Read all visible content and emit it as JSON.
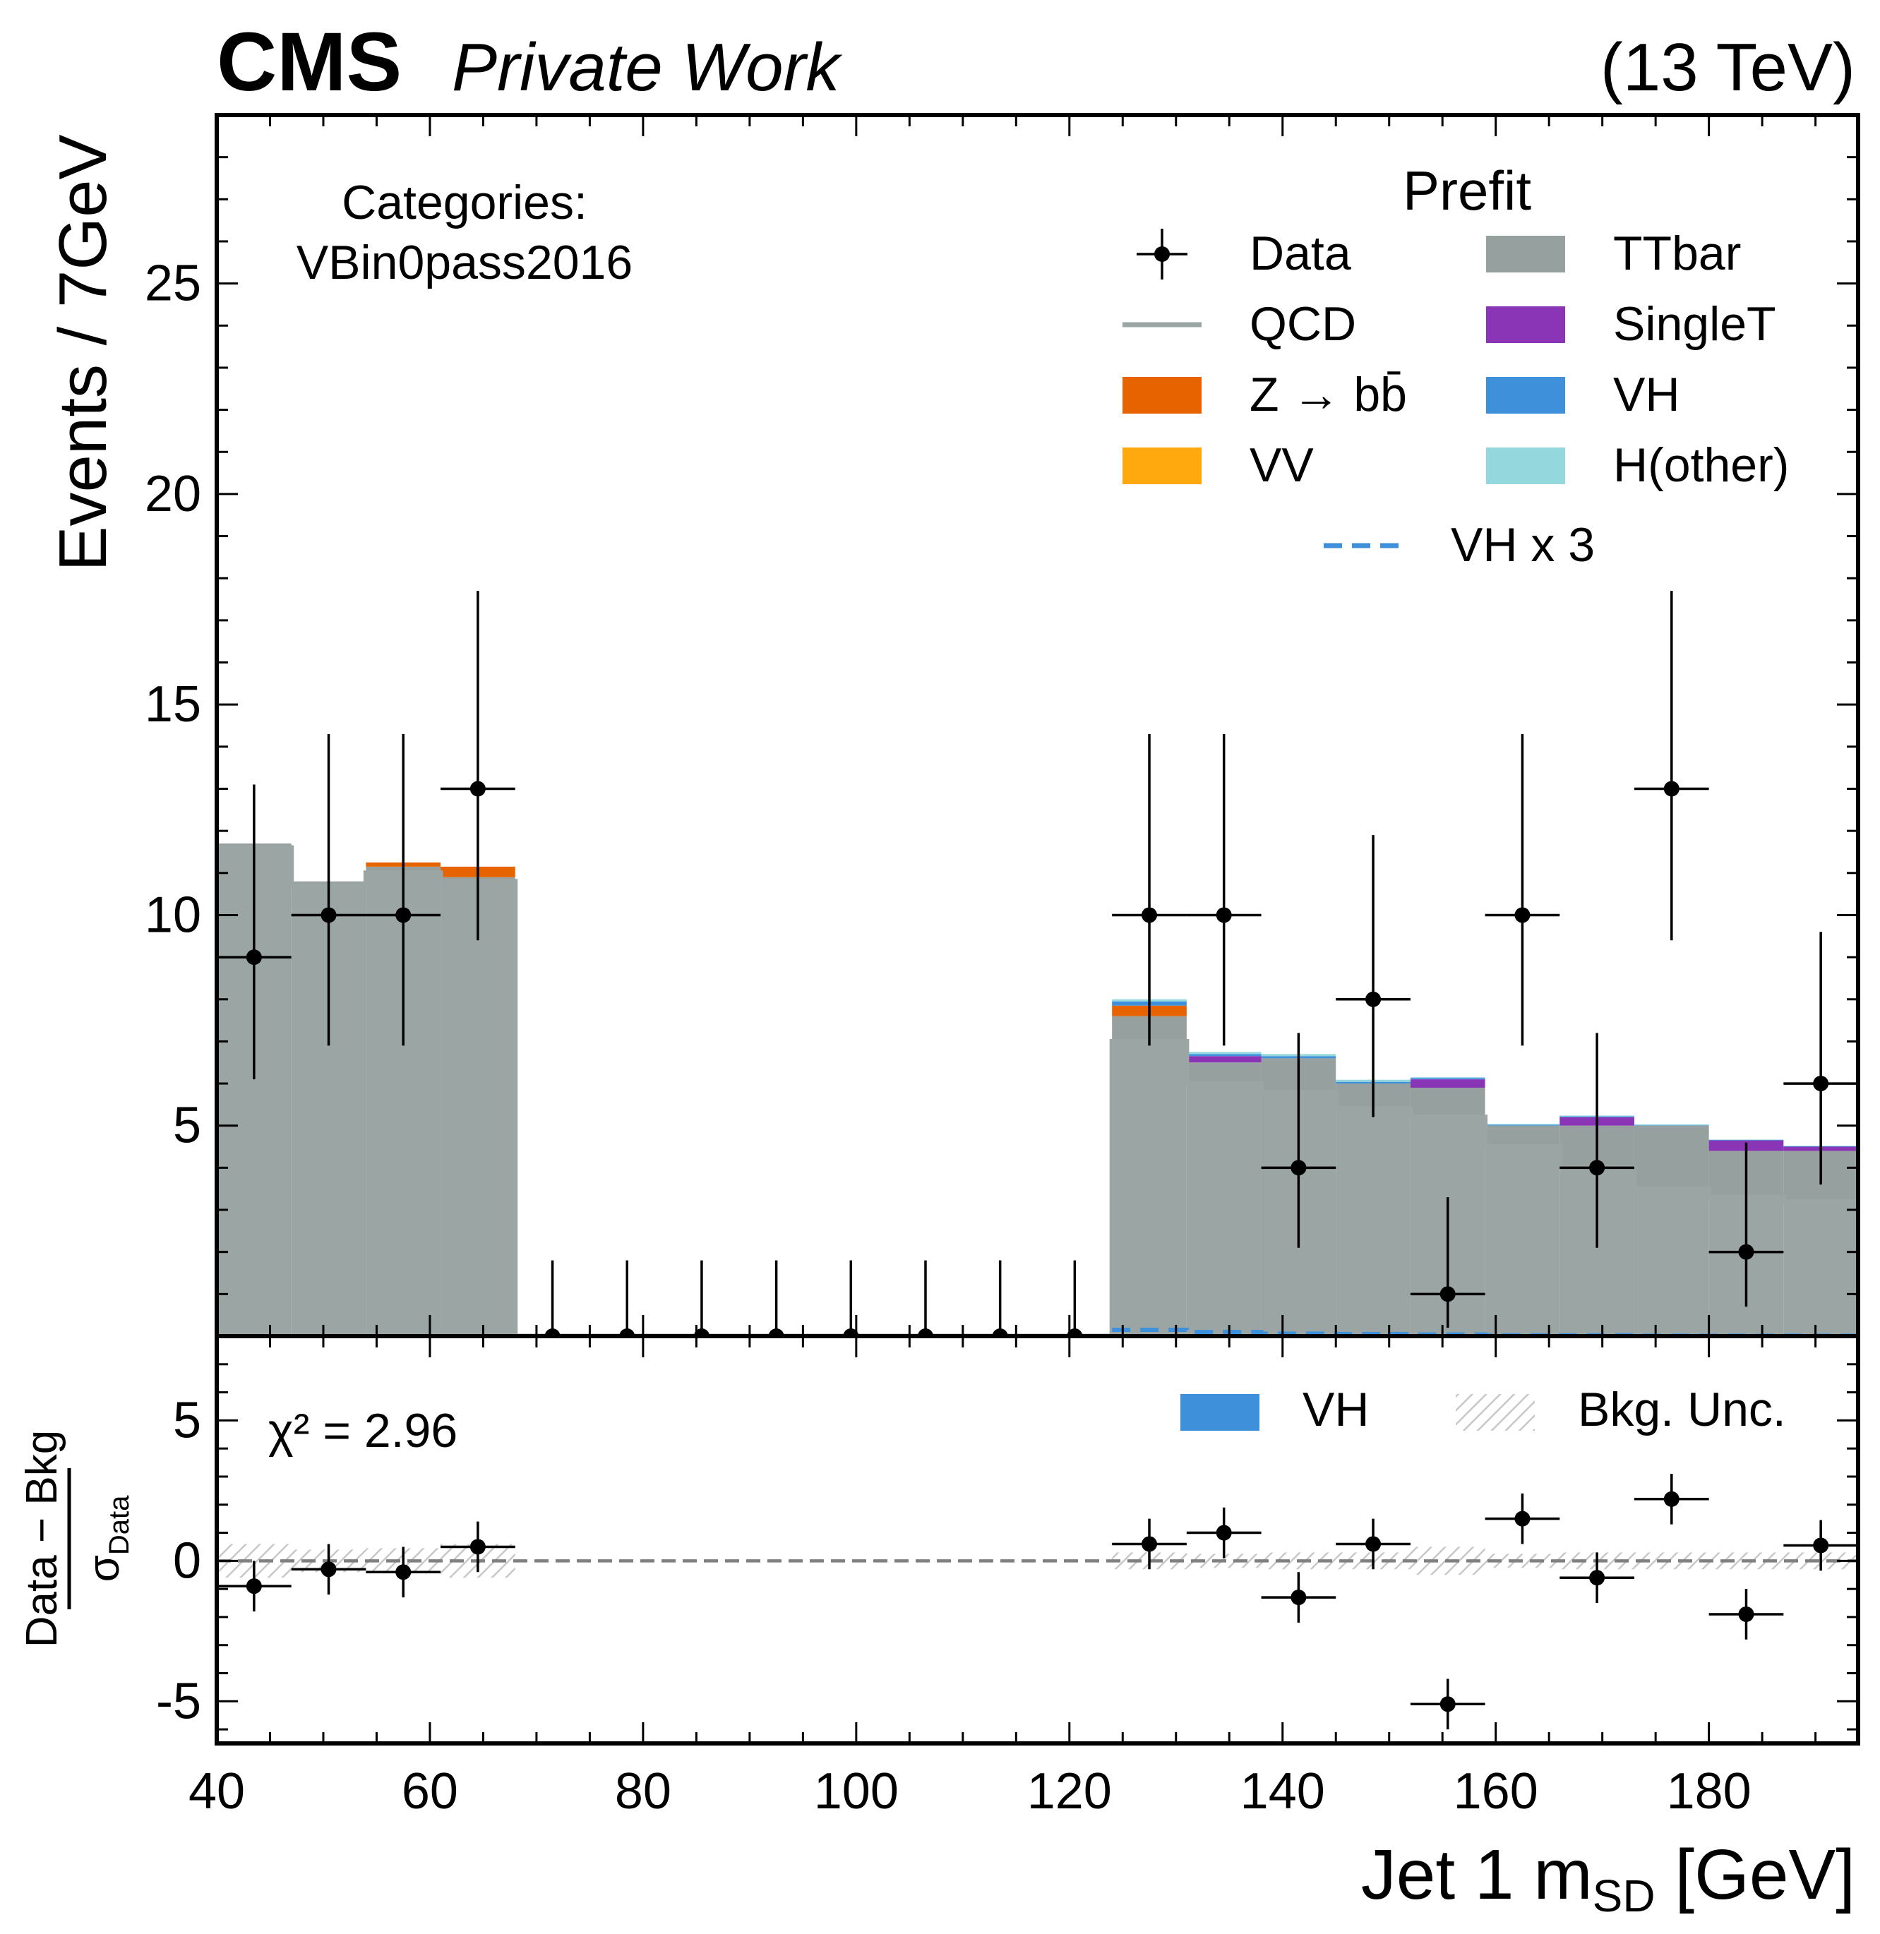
{
  "header": {
    "experiment": "CMS",
    "status": "Private Work",
    "energy": "(13 TeV)"
  },
  "annotation": {
    "line1": "Categories:",
    "line2": "VBin0pass2016"
  },
  "legend": {
    "title": "Prefit",
    "items": [
      {
        "label": "Data",
        "kind": "marker",
        "color": "#000000"
      },
      {
        "label": "TTbar",
        "kind": "fill",
        "color": "#96a09e"
      },
      {
        "label": "QCD",
        "kind": "line",
        "color": "#9ba6a4"
      },
      {
        "label": "SingleT",
        "kind": "fill",
        "color": "#8a35b5"
      },
      {
        "label": "Z → bb̄",
        "kind": "fill",
        "color": "#e76300"
      },
      {
        "label": "VH",
        "kind": "fill",
        "color": "#3f90da"
      },
      {
        "label": "VV",
        "kind": "fill",
        "color": "#ffa90e"
      },
      {
        "label": "H(other)",
        "kind": "fill",
        "color": "#94d8de"
      },
      {
        "label": "VH x 3",
        "kind": "dashed",
        "color": "#3f90da"
      }
    ]
  },
  "ratio_legend": {
    "vh_label": "VH",
    "unc_label": "Bkg. Unc.",
    "chi2_label": "χ² = 2.96"
  },
  "chart_data": [
    {
      "type": "bar",
      "panel": "main",
      "ylabel": "Events / 7GeV",
      "xlim": [
        40,
        194
      ],
      "ylim": [
        0,
        29
      ],
      "yticks": [
        5,
        10,
        15,
        20,
        25
      ],
      "x_bin_edges": [
        40,
        47,
        54,
        61,
        68,
        75,
        82,
        89,
        96,
        103,
        110,
        117,
        124,
        131,
        138,
        145,
        152,
        159,
        166,
        173,
        180,
        187,
        194
      ],
      "data": {
        "name": "Data",
        "x": [
          43.5,
          50.5,
          57.5,
          64.5,
          71.5,
          78.5,
          85.5,
          92.5,
          99.5,
          106.5,
          113.5,
          120.5,
          127.5,
          134.5,
          141.5,
          148.5,
          155.5,
          162.5,
          169.5,
          176.5,
          183.5,
          190.5
        ],
        "values": [
          9,
          10,
          10,
          13,
          0,
          0,
          0,
          0,
          0,
          0,
          0,
          0,
          10,
          10,
          4,
          8,
          1,
          10,
          4,
          13,
          2,
          6
        ],
        "err_up": [
          4.1,
          4.3,
          4.3,
          4.7,
          1.8,
          1.8,
          1.8,
          1.8,
          1.8,
          1.8,
          1.8,
          1.8,
          4.3,
          4.3,
          3.2,
          3.9,
          2.3,
          4.3,
          3.2,
          4.7,
          2.6,
          3.6
        ],
        "err_down": [
          2.9,
          3.1,
          3.1,
          3.6,
          0,
          0,
          0,
          0,
          0,
          0,
          0,
          0,
          3.1,
          3.1,
          1.9,
          2.8,
          0.8,
          3.1,
          1.9,
          3.6,
          1.3,
          2.4
        ]
      },
      "stack_order": [
        "QCD",
        "TTbar",
        "SingleT",
        "Z → bb̄",
        "VH",
        "VV",
        "H(other)"
      ],
      "series": [
        {
          "name": "QCD",
          "values": [
            11.6,
            10.7,
            11.0,
            10.8,
            0,
            0,
            0,
            0,
            0,
            0,
            0,
            0,
            7.0,
            6.0,
            5.8,
            5.4,
            5.2,
            4.5,
            4.0,
            3.5,
            3.3,
            3.2
          ]
        },
        {
          "name": "TTbar",
          "values": [
            0.1,
            0.1,
            0.15,
            0.1,
            0,
            0,
            0,
            0,
            0,
            0,
            0,
            0,
            0.6,
            0.5,
            0.8,
            0.6,
            0.7,
            0.5,
            1.0,
            1.5,
            1.1,
            1.2
          ]
        },
        {
          "name": "SingleT",
          "values": [
            0,
            0,
            0,
            0,
            0,
            0,
            0,
            0,
            0,
            0,
            0,
            0,
            0,
            0.15,
            0,
            0,
            0.2,
            0,
            0.2,
            0,
            0.25,
            0.1
          ]
        },
        {
          "name": "Z → bb̄",
          "values": [
            0,
            0,
            0.1,
            0.25,
            0,
            0,
            0,
            0,
            0,
            0,
            0,
            0,
            0.25,
            0,
            0,
            0,
            0,
            0,
            0,
            0,
            0,
            0
          ]
        },
        {
          "name": "VH",
          "values": [
            0,
            0,
            0,
            0,
            0,
            0,
            0,
            0,
            0,
            0,
            0,
            0,
            0.1,
            0.05,
            0.05,
            0.04,
            0.03,
            0.02,
            0.02,
            0.01,
            0.01,
            0.01
          ]
        },
        {
          "name": "VV",
          "values": [
            0,
            0,
            0,
            0,
            0,
            0,
            0,
            0,
            0,
            0,
            0,
            0,
            0,
            0,
            0,
            0,
            0,
            0,
            0,
            0,
            0,
            0
          ]
        },
        {
          "name": "H(other)",
          "values": [
            0,
            0,
            0,
            0,
            0,
            0,
            0,
            0,
            0,
            0,
            0,
            0,
            0.05,
            0.05,
            0.05,
            0.05,
            0.02,
            0.02,
            0.02,
            0.02,
            0.01,
            0.01
          ]
        }
      ],
      "vh_x3": [
        0,
        0,
        0,
        0,
        0,
        0,
        0,
        0,
        0,
        0,
        0,
        0,
        0.15,
        0.1,
        0.06,
        0.05,
        0.04,
        0.02,
        0.02,
        0.01,
        0.01,
        0.01
      ]
    },
    {
      "type": "scatter",
      "panel": "ratio",
      "ylabel": "Data - Bkg / σData",
      "xlabel": "Jet 1 mSD [GeV]",
      "xlim": [
        40,
        194
      ],
      "ylim": [
        -6.5,
        8
      ],
      "yticks": [
        -5,
        0,
        5
      ],
      "xticks": [
        40,
        60,
        80,
        100,
        120,
        140,
        160,
        180
      ],
      "x": [
        43.5,
        50.5,
        57.5,
        64.5,
        127.5,
        134.5,
        141.5,
        148.5,
        155.5,
        162.5,
        169.5,
        176.5,
        183.5,
        190.5
      ],
      "values": [
        -0.9,
        -0.3,
        -0.4,
        0.5,
        0.6,
        1.0,
        -1.3,
        0.6,
        -5.1,
        1.5,
        -0.6,
        2.2,
        -1.9,
        0.55
      ],
      "err": [
        0.9,
        0.9,
        0.9,
        0.9,
        0.9,
        0.9,
        0.9,
        0.9,
        0.9,
        0.9,
        0.9,
        0.9,
        0.9,
        0.9
      ],
      "bkg_unc": [
        0.6,
        0.4,
        0.45,
        0.6,
        0,
        0,
        0,
        0,
        0,
        0,
        0,
        0,
        0.3,
        0.25,
        0.3,
        0.3,
        0.5,
        0.25,
        0.3,
        0.3,
        0.3,
        0.3
      ]
    }
  ]
}
